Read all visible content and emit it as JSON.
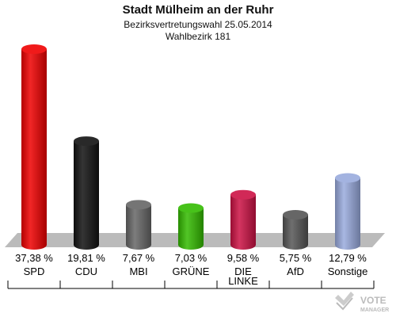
{
  "header": {
    "title": "Stadt Mülheim an der Ruhr",
    "subtitle": "Bezirksvertretungswahl 25.05.2014",
    "district": "Wahlbezirk 181"
  },
  "watermark": {
    "line1": "VOTE",
    "line2": "MANAGER"
  },
  "chart_data": {
    "type": "bar",
    "title": "Stadt Mülheim an der Ruhr",
    "categories": [
      "SPD",
      "CDU",
      "MBI",
      "GRÜNE",
      "DIE LINKE",
      "AfD",
      "Sonstige"
    ],
    "values": [
      37.38,
      19.81,
      7.67,
      7.03,
      9.58,
      5.75,
      12.79
    ],
    "value_labels": [
      "37,38 %",
      "19,81 %",
      "7,67 %",
      "7,03 %",
      "9,58 %",
      "5,75 %",
      "12,79 %"
    ],
    "colors": [
      "#ee0000",
      "#111111",
      "#666666",
      "#33bb00",
      "#cc1144",
      "#555555",
      "#99aadd"
    ],
    "ylim": [
      0,
      40
    ],
    "grid": false,
    "legend": "none"
  }
}
